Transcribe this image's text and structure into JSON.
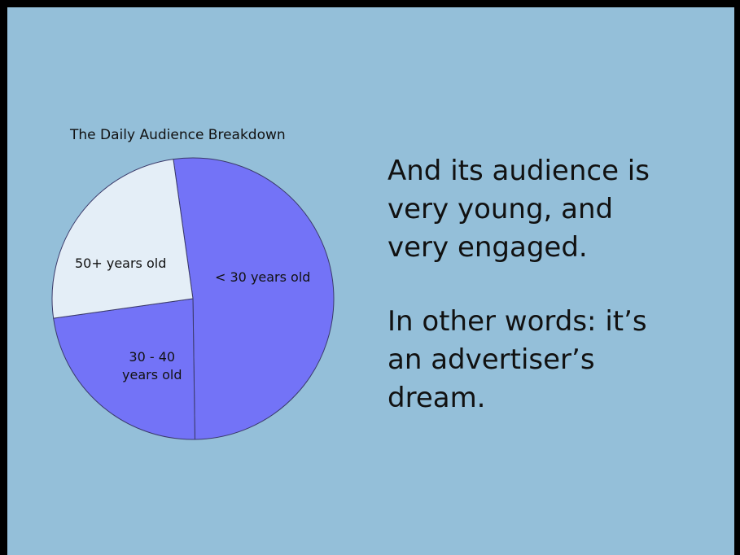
{
  "colors": {
    "frame": "#000000",
    "slide_background": "#94bfd9",
    "text": "#111111"
  },
  "chart_data": {
    "type": "pie",
    "title": "The Daily Audience Breakdown",
    "slices": [
      {
        "label": "< 30 years old",
        "value": 52,
        "color": "#7373f7"
      },
      {
        "label": "30 - 40 years old",
        "label_lines": [
          "30 - 40",
          "years old"
        ],
        "value": 23,
        "color": "#7373f7"
      },
      {
        "label": "50+ years old",
        "value": 25,
        "color": "#e4eef7"
      }
    ],
    "start_angle_deg": -8,
    "direction": "clockwise",
    "legend": "none"
  },
  "text": {
    "paragraph1": [
      "And its audience is",
      "very young, and",
      "very engaged."
    ],
    "paragraph2": [
      "In other words: it’s",
      "an advertiser’s",
      "dream."
    ]
  }
}
